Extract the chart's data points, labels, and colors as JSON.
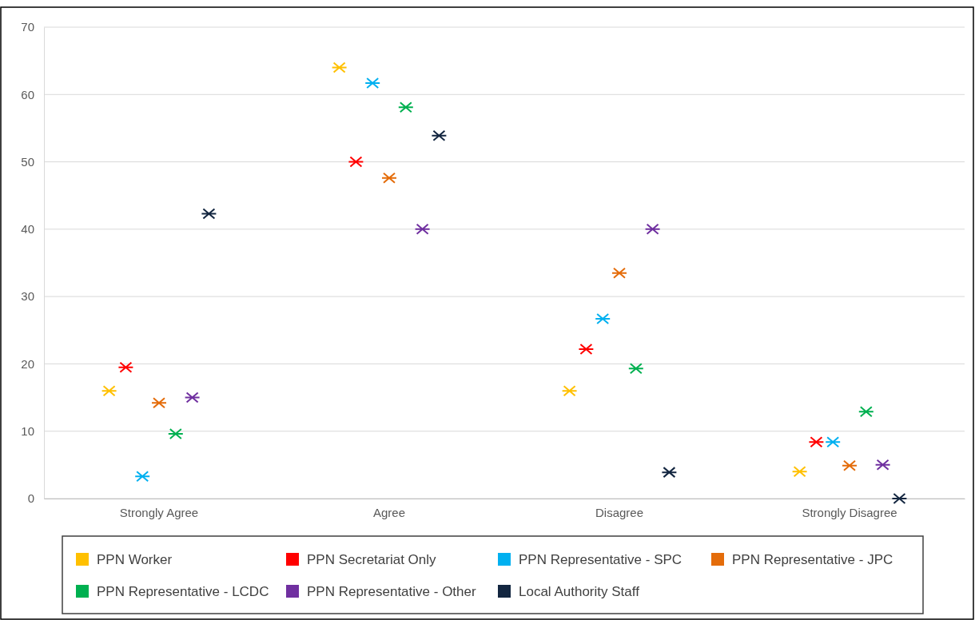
{
  "chart_data": {
    "type": "scatter",
    "categories": [
      "Strongly Agree",
      "Agree",
      "Disagree",
      "Strongly Disagree"
    ],
    "series": [
      {
        "name": "PPN Worker",
        "color": "#ffc000",
        "values": [
          16,
          64,
          16,
          4
        ]
      },
      {
        "name": "PPN Secretariat Only",
        "color": "#ff0000",
        "values": [
          19.5,
          50,
          22.2,
          8.4
        ]
      },
      {
        "name": "PPN Representative - SPC",
        "color": "#00b0f0",
        "values": [
          3.3,
          61.7,
          26.7,
          8.4
        ]
      },
      {
        "name": "PPN Representative - JPC",
        "color": "#e46c0a",
        "values": [
          14.2,
          47.6,
          33.5,
          4.9
        ]
      },
      {
        "name": "PPN Representative - LCDC",
        "color": "#00b050",
        "values": [
          9.6,
          58.1,
          19.3,
          12.9
        ]
      },
      {
        "name": "PPN Representative - Other",
        "color": "#7030a0",
        "values": [
          15,
          40,
          40,
          5
        ]
      },
      {
        "name": "Local Authority Staff",
        "color": "#132640",
        "values": [
          42.3,
          53.9,
          3.9,
          0
        ]
      }
    ],
    "ylim": [
      0,
      70
    ],
    "yticks": [
      0,
      10,
      20,
      30,
      40,
      50,
      60,
      70
    ],
    "grid": "y",
    "legend": "bottom",
    "marker": "cross"
  }
}
